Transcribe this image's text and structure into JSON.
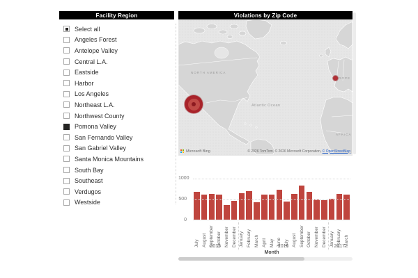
{
  "slicer": {
    "title": "Facility Region",
    "items": [
      {
        "label": "Select all",
        "state": "indeterminate"
      },
      {
        "label": "Angeles Forest",
        "state": "unchecked"
      },
      {
        "label": "Antelope Valley",
        "state": "unchecked"
      },
      {
        "label": "Central L.A.",
        "state": "unchecked"
      },
      {
        "label": "Eastside",
        "state": "unchecked"
      },
      {
        "label": "Harbor",
        "state": "unchecked"
      },
      {
        "label": "Los Angeles",
        "state": "unchecked"
      },
      {
        "label": "Northeast L.A.",
        "state": "unchecked"
      },
      {
        "label": "Northwest County",
        "state": "unchecked"
      },
      {
        "label": "Pomona Valley",
        "state": "checked"
      },
      {
        "label": "San Fernando Valley",
        "state": "unchecked"
      },
      {
        "label": "San Gabriel Valley",
        "state": "unchecked"
      },
      {
        "label": "Santa Monica Mountains",
        "state": "unchecked"
      },
      {
        "label": "South Bay",
        "state": "unchecked"
      },
      {
        "label": "Southeast",
        "state": "unchecked"
      },
      {
        "label": "Verdugos",
        "state": "unchecked"
      },
      {
        "label": "Westside",
        "state": "unchecked"
      }
    ]
  },
  "map": {
    "title": "Violations by Zip Code",
    "labels": {
      "north_america": "NORTH AMERICA",
      "atlantic_ocean": "Atlantic Ocean",
      "europe": "EUROPE",
      "africa": "AFRICA"
    },
    "attribution": {
      "logo_text": "Microsoft Bing",
      "copyright": "© 2026 TomTom, © 2026 Microsoft Corporation, ",
      "link_text": "© OpenStreetMap"
    },
    "bubble_color": "#a8232a"
  },
  "chart_data": {
    "type": "bar",
    "title": "",
    "xlabel": "Month",
    "ylabel": "",
    "ylim": [
      0,
      1000
    ],
    "yticks": [
      0,
      500,
      1000
    ],
    "grid": "dotted-horizontal",
    "legend": "none",
    "bar_color": "#bf453e",
    "months": [
      "July",
      "August",
      "September",
      "October",
      "November",
      "December",
      "January",
      "February",
      "March",
      "April",
      "May",
      "June",
      "July",
      "August",
      "September",
      "October",
      "November",
      "December",
      "January",
      "February",
      "March"
    ],
    "year_groups": [
      {
        "label": "2015",
        "start": 0,
        "count": 6
      },
      {
        "label": "2016",
        "start": 6,
        "count": 12
      },
      {
        "label": "2017",
        "start": 18,
        "count": 3
      }
    ],
    "values": [
      670,
      600,
      620,
      600,
      350,
      450,
      630,
      680,
      410,
      600,
      600,
      710,
      440,
      615,
      810,
      665,
      490,
      475,
      505,
      610,
      600
    ]
  },
  "colors": {
    "title_bar_bg": "#000000",
    "title_bar_text": "#ffffff",
    "map_land": "#d6d6d6",
    "map_ocean": "#e6e6e6"
  }
}
